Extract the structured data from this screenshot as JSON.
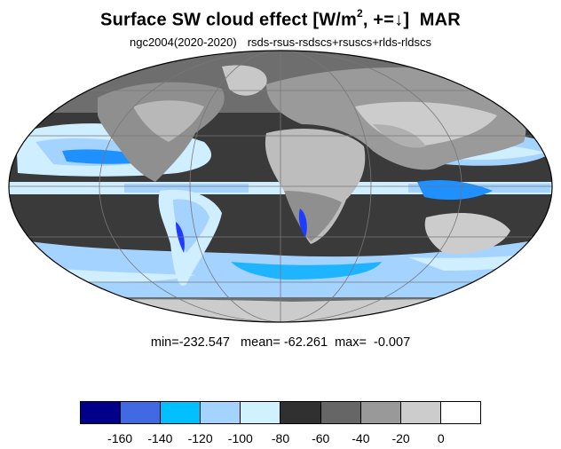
{
  "title": {
    "main": "Surface SW cloud effect [W/m",
    "sup": "2",
    "after_sup": ", +=",
    "arrow": "↓",
    "close": "]",
    "month": "MAR"
  },
  "subtitle": {
    "left": "ngc2004(2020-2020)",
    "right": "rsds-rsus-rsdscs+rsuscs+rlds-rldscs"
  },
  "stats": {
    "min_label": "min=",
    "min": "-232.547",
    "mean_label": "mean=",
    "mean": "-62.261",
    "max_label": "max=",
    "max": "-0.007"
  },
  "colorbar": {
    "colors": [
      "#00008b",
      "#4169e1",
      "#00bfff",
      "#a4d3ff",
      "#d0f2ff",
      "#303030",
      "#666666",
      "#999999",
      "#cccccc",
      "#ffffff"
    ],
    "ticks": [
      "-160",
      "-140",
      "-120",
      "-100",
      "-80",
      "-60",
      "-40",
      "-20",
      "0"
    ]
  }
}
